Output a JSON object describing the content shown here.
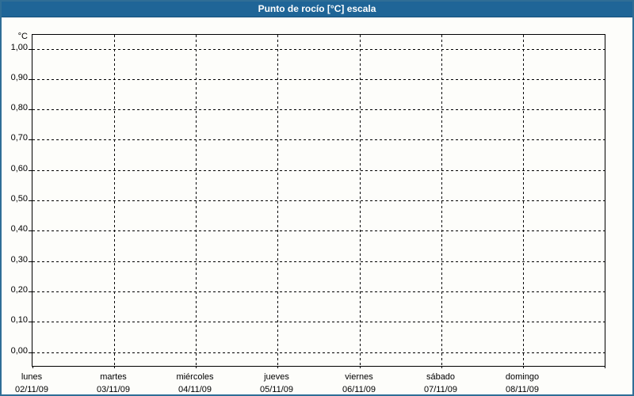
{
  "window": {
    "title": "Punto de rocío [°C] escala"
  },
  "colors": {
    "title_bar_bg": "#1F6597",
    "title_bar_edge": "#17517C",
    "title_text": "#FFFFFF",
    "outer_border": "#2F6E96",
    "panel_bg": "#FDFDFA",
    "grid_and_axis": "#000000",
    "label_text": "#000000"
  },
  "chart_data": {
    "type": "line",
    "title": "Punto de rocío [°C] escala",
    "xlabel": "",
    "ylabel": "°C",
    "ylim": [
      0.0,
      1.0
    ],
    "y_tick_step": 0.1,
    "grid": "dashed",
    "legend": "none",
    "series": [],
    "y_axis": {
      "unit": "°C",
      "ticks": [
        {
          "value": 1.0,
          "label": "1,00"
        },
        {
          "value": 0.9,
          "label": "0,90"
        },
        {
          "value": 0.8,
          "label": "0,80"
        },
        {
          "value": 0.7,
          "label": "0,70"
        },
        {
          "value": 0.6,
          "label": "0,60"
        },
        {
          "value": 0.5,
          "label": "0,50"
        },
        {
          "value": 0.4,
          "label": "0,40"
        },
        {
          "value": 0.3,
          "label": "0,30"
        },
        {
          "value": 0.2,
          "label": "0,20"
        },
        {
          "value": 0.1,
          "label": "0,10"
        },
        {
          "value": 0.0,
          "label": "0,00"
        }
      ]
    },
    "x_axis": {
      "days": [
        {
          "name": "lunes",
          "date": "02/11/09"
        },
        {
          "name": "martes",
          "date": "03/11/09"
        },
        {
          "name": "miércoles",
          "date": "04/11/09"
        },
        {
          "name": "jueves",
          "date": "05/11/09"
        },
        {
          "name": "viernes",
          "date": "06/11/09"
        },
        {
          "name": "sábado",
          "date": "07/11/09"
        },
        {
          "name": "domingo",
          "date": "08/11/09"
        }
      ]
    }
  }
}
